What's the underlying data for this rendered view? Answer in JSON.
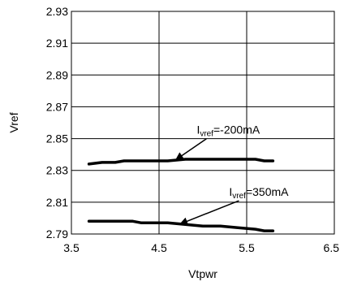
{
  "chart_data": {
    "type": "line",
    "title": "",
    "xlabel": "Vtpwr",
    "ylabel": "Vref",
    "xlim": [
      3.5,
      6.5
    ],
    "ylim": [
      2.79,
      2.93
    ],
    "x_ticks": [
      "3.5",
      "4.5",
      "5.5",
      "6.5"
    ],
    "y_ticks": [
      "2.79",
      "2.81",
      "2.83",
      "2.85",
      "2.87",
      "2.89",
      "2.91",
      "2.93"
    ],
    "grid": true,
    "series": [
      {
        "name": "",
        "x": [
          3.7,
          3.85,
          4.0,
          4.1,
          4.2,
          4.4,
          4.6,
          4.8,
          5.0,
          5.2,
          5.4,
          5.6,
          5.7,
          5.8
        ],
        "y": [
          2.834,
          2.835,
          2.835,
          2.836,
          2.836,
          2.836,
          2.836,
          2.837,
          2.837,
          2.837,
          2.837,
          2.837,
          2.836,
          2.836
        ]
      },
      {
        "name": "",
        "x": [
          3.7,
          3.9,
          4.1,
          4.2,
          4.3,
          4.5,
          4.6,
          4.8,
          5.0,
          5.2,
          5.4,
          5.6,
          5.7,
          5.8
        ],
        "y": [
          2.798,
          2.798,
          2.798,
          2.798,
          2.797,
          2.797,
          2.797,
          2.796,
          2.795,
          2.795,
          2.794,
          2.793,
          2.792,
          2.792
        ]
      }
    ],
    "annotations": [
      {
        "prefix": "I",
        "sub": "vref",
        "suffix": "=-200mA",
        "x": 4.93,
        "y": 2.853,
        "arrow_to": [
          4.7,
          2.837
        ]
      },
      {
        "prefix": "I",
        "sub": "vref",
        "suffix": "=350mA",
        "x": 5.3,
        "y": 2.814,
        "arrow_to": [
          4.75,
          2.7965
        ]
      }
    ]
  }
}
